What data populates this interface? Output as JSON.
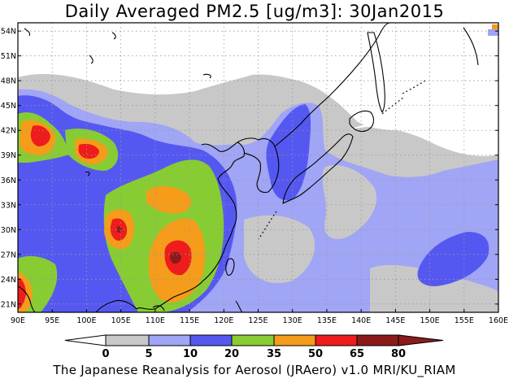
{
  "title": "Daily Averaged PM2.5 [ug/m3]: 30Jan2015",
  "footer": "The Japanese Reanalysis for Aerosol (JRAero) v1.0 MRI/KU_RIAM",
  "map": {
    "lon_range": [
      90,
      160
    ],
    "lat_range": [
      20,
      55
    ],
    "lon_ticks": [
      "90E",
      "95E",
      "100E",
      "105E",
      "110E",
      "115E",
      "120E",
      "125E",
      "130E",
      "135E",
      "140E",
      "145E",
      "150E",
      "155E",
      "160E"
    ],
    "lat_ticks": [
      "54N",
      "51N",
      "48N",
      "45N",
      "42N",
      "39N",
      "36N",
      "33N",
      "30N",
      "27N",
      "24N",
      "21N"
    ],
    "grid": true
  },
  "colorbar": {
    "labels": [
      "0",
      "5",
      "10",
      "20",
      "35",
      "50",
      "65",
      "80"
    ],
    "colors": [
      "#ffffff",
      "#c8c8c8",
      "#a0a5f5",
      "#5558f0",
      "#88cc33",
      "#f59c1a",
      "#ee1c1c",
      "#8b1a1a"
    ]
  }
}
